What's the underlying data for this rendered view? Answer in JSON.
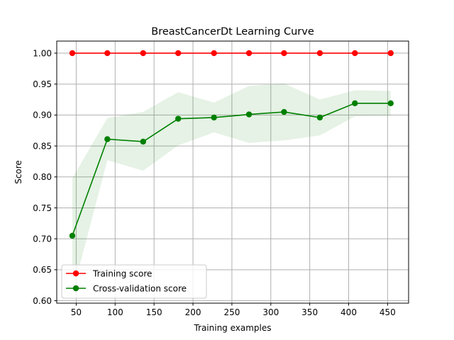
{
  "chart_data": {
    "type": "line",
    "title": "BreastCancerDt Learning Curve",
    "xlabel": "Training examples",
    "ylabel": "Score",
    "xlim": [
      25,
      477
    ],
    "ylim": [
      0.596,
      1.0195
    ],
    "xticks": [
      50,
      100,
      150,
      200,
      250,
      300,
      350,
      400,
      450
    ],
    "xtick_labels": [
      "50",
      "100",
      "150",
      "200",
      "250",
      "300",
      "350",
      "400",
      "450"
    ],
    "yticks": [
      0.6,
      0.65,
      0.7,
      0.75,
      0.8,
      0.85,
      0.9,
      0.95,
      1.0
    ],
    "ytick_labels": [
      "0.60",
      "0.65",
      "0.70",
      "0.75",
      "0.80",
      "0.85",
      "0.90",
      "0.95",
      "1.00"
    ],
    "grid": true,
    "legend_position": "lower-left",
    "x": [
      45,
      90,
      136,
      181,
      227,
      272,
      317,
      363,
      408,
      454
    ],
    "series": [
      {
        "name": "Training score",
        "color": "#ff0000",
        "values": [
          1.0,
          1.0,
          1.0,
          1.0,
          1.0,
          1.0,
          1.0,
          1.0,
          1.0,
          1.0
        ],
        "band_lower": [
          1.0,
          1.0,
          1.0,
          1.0,
          1.0,
          1.0,
          1.0,
          1.0,
          1.0,
          1.0
        ],
        "band_upper": [
          1.0,
          1.0,
          1.0,
          1.0,
          1.0,
          1.0,
          1.0,
          1.0,
          1.0,
          1.0
        ]
      },
      {
        "name": "Cross-validation score",
        "color": "#008000",
        "values": [
          0.705,
          0.861,
          0.857,
          0.894,
          0.896,
          0.901,
          0.905,
          0.896,
          0.919,
          0.919
        ],
        "band_lower": [
          0.612,
          0.827,
          0.81,
          0.851,
          0.872,
          0.855,
          0.859,
          0.867,
          0.898,
          0.899
        ],
        "band_upper": [
          0.798,
          0.895,
          0.905,
          0.937,
          0.92,
          0.947,
          0.951,
          0.925,
          0.94,
          0.939
        ]
      }
    ]
  }
}
